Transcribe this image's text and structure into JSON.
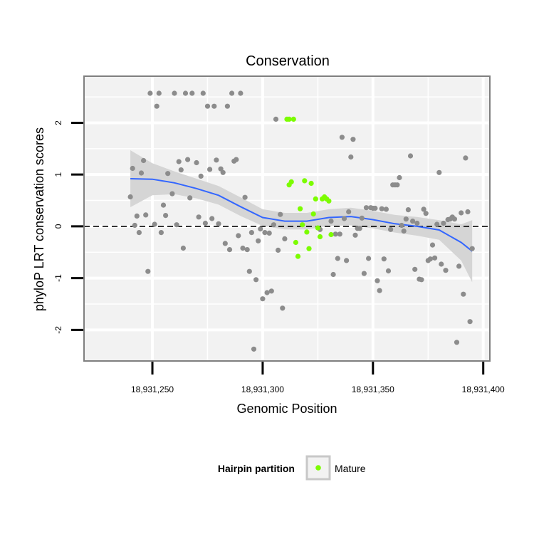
{
  "chart_data": {
    "type": "scatter",
    "title": "Conservation",
    "xlabel": "Genomic Position",
    "ylabel": "phyloP LRT conservation scores",
    "xlim": [
      18931219,
      18931403
    ],
    "ylim": [
      -2.6,
      2.9
    ],
    "x_ticks": [
      18931250,
      18931300,
      18931350,
      18931400
    ],
    "x_tick_labels": [
      "18,931,250",
      "18,931,300",
      "18,931,350",
      "18,931,400"
    ],
    "y_ticks": [
      -2,
      -1,
      0,
      1,
      2
    ],
    "y_tick_labels": [
      "-2",
      "-1",
      "0",
      "1",
      "2"
    ],
    "grid": true,
    "reference_line": {
      "y": 0,
      "style": "dashed"
    },
    "legend": {
      "title": "Hairpin partition",
      "position": "bottom",
      "entries": [
        {
          "label": "Mature",
          "color": "#7cfc00"
        }
      ]
    },
    "colors": {
      "other": "#8c8c8c",
      "mature": "#7cfc00",
      "smooth": "#3366ff",
      "band": "#d3d3d3",
      "panel_bg": "#f2f2f2"
    },
    "series": [
      {
        "values": [
          [
            18931240,
            0.57
          ],
          [
            18931241,
            1.12
          ],
          [
            18931242,
            0.02
          ],
          [
            18931243,
            0.2
          ],
          [
            18931244,
            -0.12
          ],
          [
            18931245,
            1.03
          ],
          [
            18931246,
            1.27
          ],
          [
            18931247,
            0.22
          ],
          [
            18931248,
            -0.87
          ],
          [
            18931249,
            2.57
          ],
          [
            18931251,
            0.04
          ],
          [
            18931252,
            2.32
          ],
          [
            18931253,
            2.57
          ],
          [
            18931254,
            -0.12
          ],
          [
            18931255,
            0.41
          ],
          [
            18931256,
            0.21
          ],
          [
            18931257,
            1.02
          ],
          [
            18931259,
            0.63
          ],
          [
            18931260,
            2.57
          ],
          [
            18931261,
            0.03
          ],
          [
            18931262,
            1.25
          ],
          [
            18931263,
            1.09
          ],
          [
            18931264,
            -0.42
          ],
          [
            18931265,
            2.57
          ],
          [
            18931266,
            1.29
          ],
          [
            18931267,
            0.55
          ],
          [
            18931268,
            2.57
          ],
          [
            18931270,
            1.23
          ],
          [
            18931271,
            0.18
          ],
          [
            18931272,
            0.97
          ],
          [
            18931273,
            2.57
          ],
          [
            18931274,
            0.06
          ],
          [
            18931275,
            2.32
          ],
          [
            18931276,
            1.1
          ],
          [
            18931277,
            0.15
          ],
          [
            18931278,
            2.32
          ],
          [
            18931279,
            1.28
          ],
          [
            18931280,
            0.05
          ],
          [
            18931281,
            1.11
          ],
          [
            18931282,
            1.04
          ],
          [
            18931283,
            -0.33
          ],
          [
            18931284,
            2.32
          ],
          [
            18931285,
            -0.45
          ],
          [
            18931286,
            2.57
          ],
          [
            18931287,
            1.26
          ],
          [
            18931288,
            1.29
          ],
          [
            18931289,
            -0.18
          ],
          [
            18931290,
            2.57
          ],
          [
            18931291,
            -0.42
          ],
          [
            18931292,
            0.56
          ],
          [
            18931293,
            -0.45
          ],
          [
            18931294,
            -0.87
          ],
          [
            18931295,
            -0.12
          ],
          [
            18931296,
            -2.37
          ],
          [
            18931297,
            -1.03
          ],
          [
            18931298,
            -0.28
          ],
          [
            18931299,
            -0.05
          ],
          [
            18931300,
            -1.4
          ],
          [
            18931301,
            -0.12
          ],
          [
            18931302,
            -1.28
          ],
          [
            18931303,
            -0.13
          ],
          [
            18931304,
            -1.25
          ],
          [
            18931305,
            0.03
          ],
          [
            18931306,
            2.07
          ],
          [
            18931307,
            -0.46
          ],
          [
            18931308,
            0.23
          ],
          [
            18931309,
            -1.58
          ],
          [
            18931310,
            -0.24
          ],
          [
            18931326,
            -0.06
          ],
          [
            18931331,
            0.1
          ],
          [
            18931332,
            -0.93
          ],
          [
            18931333,
            -0.15
          ],
          [
            18931334,
            -0.62
          ],
          [
            18931335,
            -0.15
          ],
          [
            18931336,
            1.72
          ],
          [
            18931337,
            0.15
          ],
          [
            18931338,
            -0.66
          ],
          [
            18931339,
            0.28
          ],
          [
            18931340,
            1.34
          ],
          [
            18931341,
            1.68
          ],
          [
            18931342,
            -0.17
          ],
          [
            18931343,
            -0.04
          ],
          [
            18931344,
            -0.04
          ],
          [
            18931345,
            0.16
          ],
          [
            18931346,
            -0.91
          ],
          [
            18931347,
            0.36
          ],
          [
            18931348,
            -0.62
          ],
          [
            18931349,
            0.36
          ],
          [
            18931350,
            0.35
          ],
          [
            18931351,
            0.35
          ],
          [
            18931352,
            -1.05
          ],
          [
            18931353,
            -1.24
          ],
          [
            18931354,
            0.34
          ],
          [
            18931355,
            -0.63
          ],
          [
            18931356,
            0.33
          ],
          [
            18931357,
            -0.86
          ],
          [
            18931358,
            -0.06
          ],
          [
            18931359,
            0.8
          ],
          [
            18931360,
            0.8
          ],
          [
            18931361,
            0.8
          ],
          [
            18931362,
            0.94
          ],
          [
            18931363,
            0.02
          ],
          [
            18931364,
            -0.09
          ],
          [
            18931365,
            0.14
          ],
          [
            18931366,
            0.32
          ],
          [
            18931367,
            1.36
          ],
          [
            18931368,
            0.1
          ],
          [
            18931369,
            -0.83
          ],
          [
            18931370,
            0.06
          ],
          [
            18931371,
            -1.02
          ],
          [
            18931372,
            -1.03
          ],
          [
            18931373,
            0.33
          ],
          [
            18931374,
            0.25
          ],
          [
            18931375,
            -0.66
          ],
          [
            18931376,
            -0.63
          ],
          [
            18931377,
            -0.36
          ],
          [
            18931378,
            -0.61
          ],
          [
            18931379,
            0.04
          ],
          [
            18931380,
            1.04
          ],
          [
            18931381,
            -0.73
          ],
          [
            18931382,
            0.06
          ],
          [
            18931383,
            -0.85
          ],
          [
            18931384,
            0.13
          ],
          [
            18931385,
            0.14
          ],
          [
            18931386,
            0.18
          ],
          [
            18931387,
            0.14
          ],
          [
            18931388,
            -2.24
          ],
          [
            18931389,
            -0.77
          ],
          [
            18931390,
            0.26
          ],
          [
            18931391,
            -1.31
          ],
          [
            18931392,
            1.32
          ],
          [
            18931393,
            0.28
          ],
          [
            18931394,
            -1.84
          ],
          [
            18931395,
            -0.43
          ]
        ]
      },
      {
        "name": "Mature",
        "values": [
          [
            18931311,
            2.07
          ],
          [
            18931312,
            2.07
          ],
          [
            18931314,
            2.07
          ],
          [
            18931312,
            0.8
          ],
          [
            18931313,
            0.86
          ],
          [
            18931315,
            -0.31
          ],
          [
            18931316,
            -0.58
          ],
          [
            18931317,
            0.34
          ],
          [
            18931318,
            0.03
          ],
          [
            18931319,
            0.88
          ],
          [
            18931320,
            -0.11
          ],
          [
            18931321,
            -0.43
          ],
          [
            18931322,
            0.83
          ],
          [
            18931323,
            0.24
          ],
          [
            18931324,
            0.53
          ],
          [
            18931325,
            -0.03
          ],
          [
            18931326,
            -0.2
          ],
          [
            18931327,
            0.53
          ],
          [
            18931328,
            0.57
          ],
          [
            18931329,
            0.53
          ],
          [
            18931330,
            0.49
          ],
          [
            18931331,
            -0.16
          ]
        ]
      }
    ],
    "smooth": {
      "line": [
        [
          18931240,
          0.92
        ],
        [
          18931250,
          0.91
        ],
        [
          18931260,
          0.84
        ],
        [
          18931270,
          0.73
        ],
        [
          18931280,
          0.6
        ],
        [
          18931290,
          0.38
        ],
        [
          18931300,
          0.17
        ],
        [
          18931310,
          0.1
        ],
        [
          18931320,
          0.1
        ],
        [
          18931330,
          0.17
        ],
        [
          18931340,
          0.19
        ],
        [
          18931350,
          0.13
        ],
        [
          18931360,
          0.05
        ],
        [
          18931370,
          0.0
        ],
        [
          18931380,
          -0.07
        ],
        [
          18931390,
          -0.31
        ],
        [
          18931395,
          -0.48
        ]
      ],
      "upper": [
        [
          18931240,
          1.47
        ],
        [
          18931250,
          1.22
        ],
        [
          18931260,
          1.06
        ],
        [
          18931270,
          0.92
        ],
        [
          18931280,
          0.78
        ],
        [
          18931290,
          0.56
        ],
        [
          18931300,
          0.33
        ],
        [
          18931310,
          0.26
        ],
        [
          18931320,
          0.26
        ],
        [
          18931330,
          0.33
        ],
        [
          18931340,
          0.36
        ],
        [
          18931350,
          0.3
        ],
        [
          18931360,
          0.22
        ],
        [
          18931370,
          0.18
        ],
        [
          18931380,
          0.12
        ],
        [
          18931390,
          0.04
        ],
        [
          18931395,
          0.12
        ]
      ],
      "lower": [
        [
          18931240,
          0.37
        ],
        [
          18931250,
          0.6
        ],
        [
          18931260,
          0.62
        ],
        [
          18931270,
          0.54
        ],
        [
          18931280,
          0.42
        ],
        [
          18931290,
          0.2
        ],
        [
          18931300,
          0.01
        ],
        [
          18931310,
          -0.06
        ],
        [
          18931320,
          -0.06
        ],
        [
          18931330,
          0.01
        ],
        [
          18931340,
          0.02
        ],
        [
          18931350,
          -0.04
        ],
        [
          18931360,
          -0.12
        ],
        [
          18931370,
          -0.18
        ],
        [
          18931380,
          -0.26
        ],
        [
          18931390,
          -0.66
        ],
        [
          18931395,
          -1.08
        ]
      ]
    }
  }
}
